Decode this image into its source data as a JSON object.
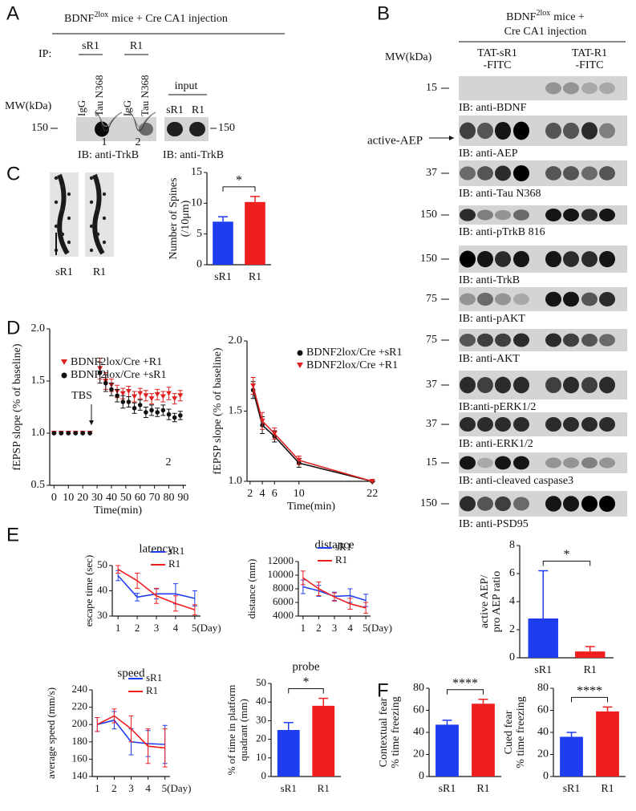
{
  "panel_labels": [
    "A",
    "B",
    "C",
    "D",
    "E",
    "F"
  ],
  "panel_a": {
    "title": {
      "base": "BDNF",
      "sup": "2lox",
      "rest": "mice + Cre CA1 injection"
    },
    "ip_label": "IP:",
    "groups": [
      "sR1",
      "R1"
    ],
    "lanes": [
      "IgG",
      "Tau N368",
      "IgG",
      "Tau N368"
    ],
    "input_label": "input",
    "input_lanes": [
      "sR1",
      "R1"
    ],
    "mw_label": "MW(kDa)",
    "mw_left": "150",
    "mw_right": "150",
    "ib_labels": [
      "IB: anti-TrkB",
      "IB: anti-TrkB"
    ]
  },
  "panel_b": {
    "title": {
      "base": "BDNF",
      "sup": "2lox",
      "rest": "mice +",
      "line2": "Cre CA1 injection"
    },
    "mw_label": "MW(kDa)",
    "groups": [
      [
        "TAT-sR1",
        "-FITC"
      ],
      [
        "TAT-R1",
        "-FITC"
      ]
    ],
    "blots": [
      {
        "mw": "15",
        "label": "IB: anti-BDNF"
      },
      {
        "side_label": "active-AEP",
        "label": "IB: anti-AEP"
      },
      {
        "mw": "37",
        "label": "IB: anti-Tau N368"
      },
      {
        "mw": "150",
        "label": "IB: anti-pTrkB 816"
      },
      {
        "mw": "150",
        "label": "IB: anti-TrkB"
      },
      {
        "mw": "75",
        "label": "IB: anti-pAKT"
      },
      {
        "mw": "75",
        "label": "IB: anti-AKT"
      },
      {
        "mw": "37",
        "label": "IB:anti-pERK1/2"
      },
      {
        "mw": "37",
        "label": "IB: anti-ERK1/2"
      },
      {
        "mw": "15",
        "label": "IB: anti-cleaved caspase3"
      },
      {
        "mw": "150",
        "label": "IB: anti-PSD95"
      }
    ]
  },
  "panel_c_images": [
    "sR1",
    "R1"
  ],
  "panel_d_inset": [
    "1",
    "2"
  ],
  "chart_data": [
    {
      "type": "bar",
      "ylabel": [
        "Number of Spines",
        "(/10μm)"
      ],
      "categories": [
        "sR1",
        "R1"
      ],
      "values": [
        7.0,
        10.2
      ],
      "errors": [
        0.8,
        0.9
      ],
      "colors": [
        "#1f3df0",
        "#f01f1f"
      ],
      "ylim": [
        0,
        15
      ],
      "yticks": [
        0,
        5,
        10,
        15
      ],
      "annotation": "*"
    },
    {
      "type": "line",
      "ylabel": "fEPSP slope (% of baseline)",
      "xlabel": "Time(min)",
      "connect": false,
      "legend": "upper left",
      "xlim": [
        -3,
        92
      ],
      "xticks": [
        0,
        10,
        20,
        30,
        40,
        50,
        60,
        70,
        80,
        90
      ],
      "ylim": [
        0.5,
        2.0
      ],
      "yticks": [
        0.5,
        {
          "value": 1,
          "label": "1.0"
        },
        1.5,
        {
          "value": 2,
          "label": "2.0"
        }
      ],
      "x": [
        0,
        5,
        10,
        15,
        20,
        25,
        32,
        36,
        40,
        44,
        48,
        52,
        56,
        60,
        64,
        68,
        72,
        76,
        80,
        84,
        88
      ],
      "series": [
        {
          "name": "BDNF2lox/Cre +R1",
          "color": "#e02020",
          "marker": "triangle",
          "values": [
            1,
            1,
            1,
            1,
            1,
            1,
            1.62,
            1.5,
            1.46,
            1.4,
            1.38,
            1.4,
            1.35,
            1.38,
            1.36,
            1.33,
            1.37,
            1.35,
            1.38,
            1.33,
            1.36
          ],
          "errors": [
            0,
            0,
            0,
            0,
            0,
            0,
            0.1,
            0.08,
            0.06,
            0.06,
            0.05,
            0.05,
            0.05,
            0.05,
            0.05,
            0.05,
            0.05,
            0.05,
            0.06,
            0.05,
            0.05
          ]
        },
        {
          "name": "BDNF2lox/Cre +sR1",
          "color": "#111111",
          "marker": "circle",
          "values": [
            1,
            1,
            1,
            1,
            1,
            1,
            1.58,
            1.48,
            1.42,
            1.36,
            1.3,
            1.3,
            1.24,
            1.27,
            1.2,
            1.22,
            1.2,
            1.22,
            1.18,
            1.15,
            1.17
          ],
          "errors": [
            0,
            0,
            0,
            0,
            0,
            0,
            0.1,
            0.08,
            0.06,
            0.06,
            0.06,
            0.05,
            0.05,
            0.05,
            0.05,
            0.05,
            0.04,
            0.05,
            0.05,
            0.04,
            0.04
          ]
        }
      ],
      "annotations": [
        "TBS",
        "2"
      ]
    },
    {
      "type": "line",
      "ylabel": "fEPSP slope (% of baseline)",
      "xlabel": "Time(min)",
      "connect": true,
      "legend": "upper right",
      "xlim": [
        1.5,
        22.5
      ],
      "xticks": [
        2,
        4,
        6,
        10,
        22
      ],
      "ylim": [
        1.0,
        2.0
      ],
      "yticks": [
        {
          "value": 1,
          "label": "1.0"
        },
        1.5,
        {
          "value": 2,
          "label": "2.0"
        }
      ],
      "x": [
        2.5,
        4,
        6,
        10,
        22
      ],
      "series": [
        {
          "name": "BDNF2lox/Cre +sR1",
          "color": "#111111",
          "marker": "circle",
          "values": [
            1.65,
            1.4,
            1.32,
            1.13,
            1.0
          ],
          "errors": [
            0.06,
            0.06,
            0.04,
            0.03,
            0
          ]
        },
        {
          "name": "BDNF2lox/Cre +R1",
          "color": "#e02020",
          "marker": "triangle",
          "values": [
            1.68,
            1.43,
            1.34,
            1.15,
            1.0
          ],
          "errors": [
            0.06,
            0.06,
            0.04,
            0.03,
            0
          ]
        }
      ]
    },
    {
      "type": "line",
      "title": "latency",
      "ylabel": "escape time (sec)",
      "connect": true,
      "legend": "upper right",
      "xlim": [
        0.7,
        5.3
      ],
      "xticks": [
        1,
        2,
        3,
        4,
        {
          "value": 5,
          "label": "5(Day)"
        }
      ],
      "x": [
        1,
        2,
        3,
        4,
        5
      ],
      "ylim": [
        30,
        50
      ],
      "yticks": [
        30,
        40,
        50
      ],
      "series": [
        {
          "name": "sR1",
          "color": "#1f3df0",
          "values": [
            46,
            37.5,
            38.8,
            38.8,
            37
          ],
          "errors": [
            2,
            1.5,
            2,
            4,
            3
          ]
        },
        {
          "name": "R1",
          "color": "#f01f1f",
          "values": [
            48.5,
            44,
            38,
            35,
            32.5
          ],
          "errors": [
            1.5,
            3,
            3,
            3,
            2
          ]
        }
      ]
    },
    {
      "type": "line",
      "title": "distance",
      "ylabel": "distance (mm)",
      "connect": true,
      "legend": "upper right",
      "xlim": [
        0.7,
        5.3
      ],
      "xticks": [
        1,
        2,
        3,
        4,
        {
          "value": 5,
          "label": "5(Day)"
        }
      ],
      "x": [
        1,
        2,
        3,
        4,
        5
      ],
      "ylim": [
        4000,
        12000
      ],
      "yticks": [
        4000,
        6000,
        8000,
        10000,
        12000
      ],
      "series": [
        {
          "name": "sR1",
          "color": "#1f3df0",
          "values": [
            8300,
            7700,
            6900,
            7000,
            6300
          ],
          "errors": [
            1000,
            800,
            600,
            1000,
            900
          ]
        },
        {
          "name": "R1",
          "color": "#f01f1f",
          "values": [
            9600,
            8000,
            6800,
            5800,
            5200
          ],
          "errors": [
            1000,
            1000,
            600,
            800,
            800
          ]
        }
      ]
    },
    {
      "type": "line",
      "title": "speed",
      "ylabel": "average speed (mm/s)",
      "connect": true,
      "legend": "upper right",
      "xlim": [
        0.7,
        5.3
      ],
      "xticks": [
        1,
        2,
        3,
        4,
        {
          "value": 5,
          "label": "5(Day)"
        }
      ],
      "x": [
        1,
        2,
        3,
        4,
        5
      ],
      "ylim": [
        140,
        240
      ],
      "yticks": [
        140,
        160,
        180,
        200,
        220,
        240
      ],
      "series": [
        {
          "name": "sR1",
          "color": "#1f3df0",
          "values": [
            200,
            205,
            180,
            178,
            177
          ],
          "errors": [
            8,
            10,
            15,
            15,
            22
          ]
        },
        {
          "name": "R1",
          "color": "#f01f1f",
          "values": [
            200,
            210,
            195,
            175,
            173
          ],
          "errors": [
            8,
            8,
            15,
            20,
            22
          ]
        }
      ]
    },
    {
      "type": "bar",
      "title": "probe",
      "ylabel": [
        "% of time in platform",
        "quadrant (mm)"
      ],
      "categories": [
        "sR1",
        "R1"
      ],
      "values": [
        25,
        38
      ],
      "errors": [
        4,
        4
      ],
      "colors": [
        "#1f3df0",
        "#f01f1f"
      ],
      "ylim": [
        0,
        50
      ],
      "yticks": [
        0,
        10,
        20,
        30,
        40,
        50
      ],
      "annotation": "*"
    },
    {
      "type": "bar",
      "ylabel": [
        "Contextual fear",
        "% time freezing"
      ],
      "categories": [
        "sR1",
        "R1"
      ],
      "values": [
        47,
        66
      ],
      "errors": [
        4,
        4
      ],
      "colors": [
        "#1f3df0",
        "#f01f1f"
      ],
      "ylim": [
        0,
        80
      ],
      "yticks": [
        0,
        20,
        40,
        60,
        80
      ],
      "annotation": "****"
    },
    {
      "type": "bar",
      "ylabel": [
        "Cued fear",
        "% time freezing"
      ],
      "categories": [
        "sR1",
        "R1"
      ],
      "values": [
        36,
        59
      ],
      "errors": [
        4,
        4
      ],
      "colors": [
        "#1f3df0",
        "#f01f1f"
      ],
      "ylim": [
        0,
        80
      ],
      "yticks": [
        0,
        20,
        40,
        60,
        80
      ],
      "annotation": "****"
    },
    {
      "type": "bar",
      "ylabel": [
        "active AEP/",
        "pro AEP ratio"
      ],
      "categories": [
        "sR1",
        "R1"
      ],
      "values": [
        2.8,
        0.45
      ],
      "errors": [
        3.4,
        0.35
      ],
      "colors": [
        "#1f3df0",
        "#f01f1f"
      ],
      "ylim": [
        0,
        8
      ],
      "yticks": [
        0,
        2,
        4,
        6,
        8
      ],
      "annotation": "*"
    }
  ]
}
